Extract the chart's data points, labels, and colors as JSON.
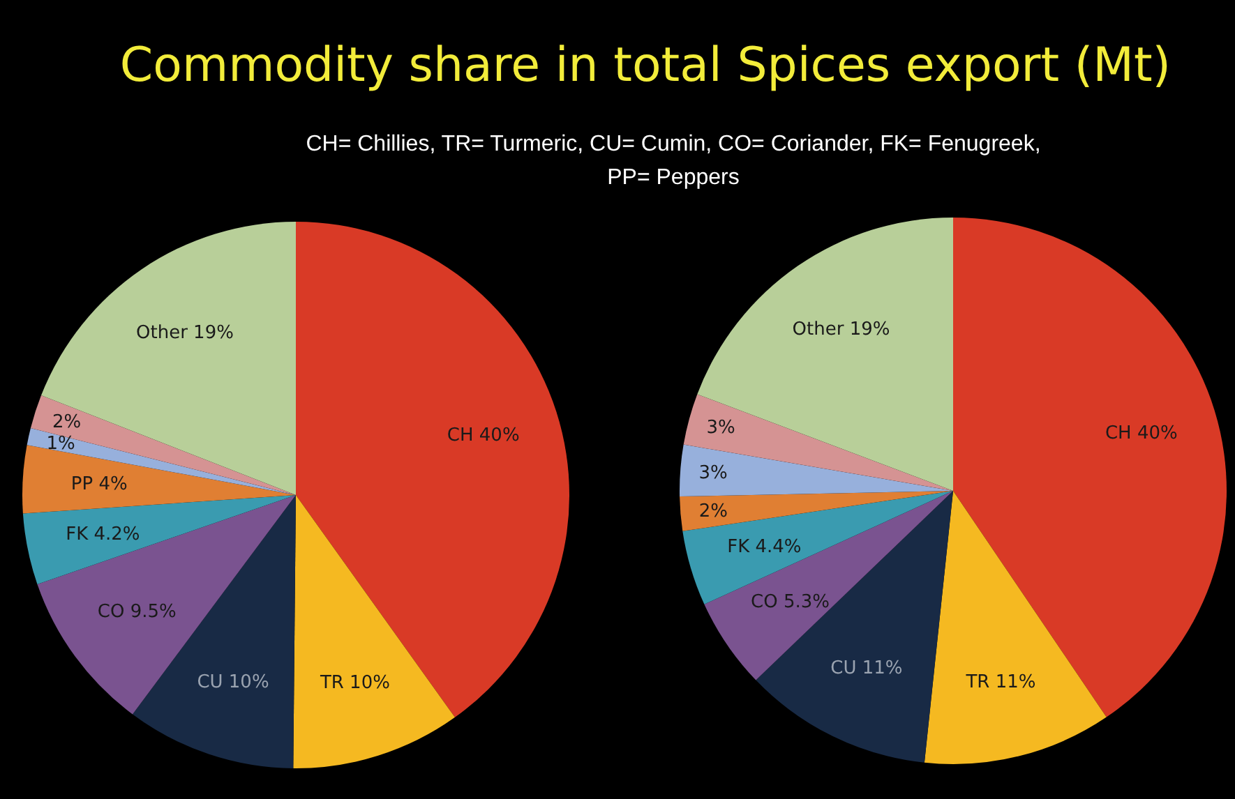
{
  "chart_data": [
    {
      "type": "pie",
      "title": "Commodity share in total Spices export (Mt)",
      "subtitle": "CH= Chillies, TR= Turmeric, CU= Cumin, CO= Coriander, FK= Fenugreek, PP= Peppers",
      "categories": [
        "CH",
        "TR",
        "CU",
        "CO",
        "FK",
        "PP",
        null,
        null,
        "Other"
      ],
      "values": [
        40,
        10,
        10,
        9.5,
        4.2,
        4,
        1,
        2,
        19
      ],
      "value_labels": [
        "40%",
        "10%",
        "10%",
        "9.5%",
        "4.2%",
        "4%",
        "1%",
        "2%",
        "19%"
      ],
      "colors": [
        "#d93a26",
        "#f5b921",
        "#182a45",
        "#7a5390",
        "#3a9bb0",
        "#e07f33",
        "#97b0dc",
        "#d59393",
        "#b8cf99"
      ]
    },
    {
      "type": "pie",
      "categories": [
        "CH",
        "TR",
        "CU",
        "CO",
        "FK",
        null,
        null,
        null,
        "Other"
      ],
      "values": [
        40,
        11,
        11,
        5.3,
        4.4,
        2,
        3,
        3,
        19
      ],
      "value_labels": [
        "40%",
        "11%",
        "11%",
        "5.3%",
        "4.4%",
        "2%",
        "3%",
        "3%",
        "19%"
      ],
      "colors": [
        "#d93a26",
        "#f5b921",
        "#182a45",
        "#7a5390",
        "#3a9bb0",
        "#e07f33",
        "#97b0dc",
        "#d59393",
        "#b8cf99"
      ]
    }
  ]
}
